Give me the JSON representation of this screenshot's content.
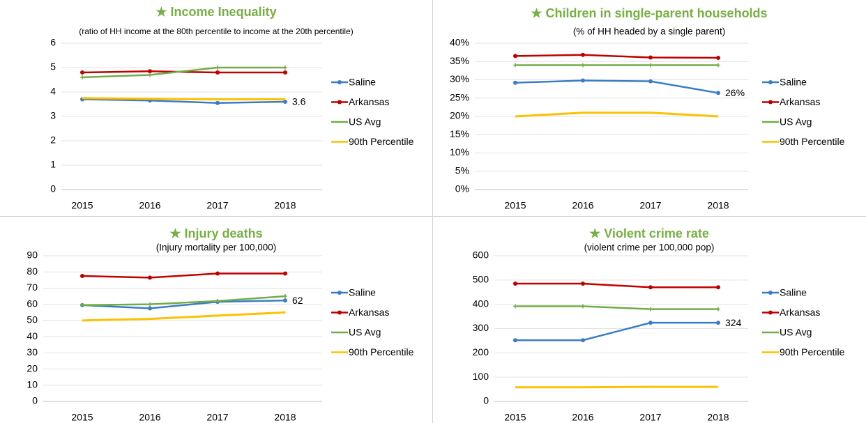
{
  "chart_data": [
    {
      "type": "line",
      "title": "★ Income Inequality",
      "subtitle": "(ratio of HH income at the 80th percentile to income at the 20th percentile)",
      "categories": [
        "2015",
        "2016",
        "2017",
        "2018"
      ],
      "ylim": [
        0,
        6
      ],
      "yticks": [
        0,
        1,
        2,
        3,
        4,
        5,
        6
      ],
      "grid": true,
      "series": [
        {
          "name": "Saline",
          "color": "#3b7dc4",
          "marker": "circle",
          "values": [
            3.7,
            3.65,
            3.55,
            3.6
          ],
          "value_labels": [
            null,
            null,
            null,
            "3.6"
          ]
        },
        {
          "name": "Arkansas",
          "color": "#c00000",
          "marker": "circle",
          "values": [
            4.8,
            4.85,
            4.8,
            4.8
          ]
        },
        {
          "name": "US Avg",
          "color": "#70ad47",
          "marker": "plus",
          "values": [
            4.6,
            4.7,
            5.0,
            5.0
          ]
        },
        {
          "name": "90th Percentile",
          "color": "#ffc000",
          "values": [
            3.75,
            3.72,
            3.7,
            3.7
          ]
        }
      ]
    },
    {
      "type": "line",
      "title": "★ Children in single-parent households",
      "subtitle": "(% of HH headed by a single parent)",
      "categories": [
        "2015",
        "2016",
        "2017",
        "2018"
      ],
      "ylim": [
        0,
        40
      ],
      "yticks": [
        {
          "value": 0,
          "label": "0%"
        },
        {
          "value": 5,
          "label": "5%"
        },
        {
          "value": 10,
          "label": "10%"
        },
        {
          "value": 15,
          "label": "15%"
        },
        {
          "value": 20,
          "label": "20%"
        },
        {
          "value": 25,
          "label": "25%"
        },
        {
          "value": 30,
          "label": "30%"
        },
        {
          "value": 35,
          "label": "35%"
        },
        {
          "value": 40,
          "label": "40%"
        }
      ],
      "grid": true,
      "series": [
        {
          "name": "Saline",
          "color": "#3b7dc4",
          "marker": "circle",
          "values": [
            29.2,
            29.8,
            29.6,
            26.4
          ],
          "value_labels": [
            null,
            null,
            null,
            "26%"
          ]
        },
        {
          "name": "Arkansas",
          "color": "#c00000",
          "marker": "circle",
          "values": [
            36.5,
            36.8,
            36.1,
            36.0
          ]
        },
        {
          "name": "US Avg",
          "color": "#70ad47",
          "marker": "plus",
          "values": [
            34,
            34,
            34,
            34
          ]
        },
        {
          "name": "90th Percentile",
          "color": "#ffc000",
          "values": [
            20,
            21,
            21,
            20
          ]
        }
      ]
    },
    {
      "type": "line",
      "title": "★ Injury deaths",
      "subtitle": "(Injury mortality per 100,000)",
      "categories": [
        "2015",
        "2016",
        "2017",
        "2018"
      ],
      "ylim": [
        0,
        90
      ],
      "yticks": [
        0,
        10,
        20,
        30,
        40,
        50,
        60,
        70,
        80,
        90
      ],
      "grid": true,
      "series": [
        {
          "name": "Saline",
          "color": "#3b7dc4",
          "marker": "circle",
          "values": [
            59.5,
            57.5,
            61.5,
            62.4
          ],
          "value_labels": [
            null,
            null,
            null,
            "62"
          ]
        },
        {
          "name": "Arkansas",
          "color": "#c00000",
          "marker": "circle",
          "values": [
            77.5,
            76.5,
            79,
            79
          ]
        },
        {
          "name": "US Avg",
          "color": "#70ad47",
          "marker": "plus",
          "values": [
            59.5,
            60,
            62,
            65
          ]
        },
        {
          "name": "90th Percentile",
          "color": "#ffc000",
          "values": [
            50,
            51,
            53,
            55
          ]
        }
      ]
    },
    {
      "type": "line",
      "title": "★ Violent crime rate",
      "subtitle": "(violent crime per 100,000 pop)",
      "categories": [
        "2015",
        "2016",
        "2017",
        "2018"
      ],
      "ylim": [
        0,
        600
      ],
      "yticks": [
        0,
        100,
        200,
        300,
        400,
        500,
        600
      ],
      "grid": true,
      "series": [
        {
          "name": "Saline",
          "color": "#3b7dc4",
          "marker": "circle",
          "values": [
            252,
            252,
            324,
            324
          ],
          "value_labels": [
            null,
            null,
            null,
            "324"
          ]
        },
        {
          "name": "Arkansas",
          "color": "#c00000",
          "marker": "circle",
          "values": [
            485,
            485,
            470,
            470
          ]
        },
        {
          "name": "US Avg",
          "color": "#70ad47",
          "marker": "plus",
          "values": [
            392,
            392,
            380,
            380
          ]
        },
        {
          "name": "90th Percentile",
          "color": "#ffc000",
          "values": [
            58,
            58,
            60,
            60
          ]
        }
      ]
    }
  ]
}
